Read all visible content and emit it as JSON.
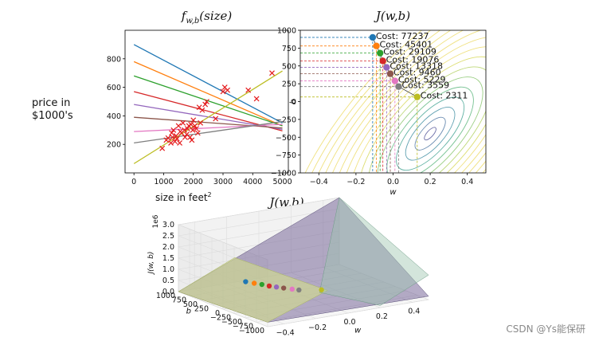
{
  "colors": {
    "c0": "#1f77b4",
    "c1": "#ff7f0e",
    "c2": "#2ca02c",
    "c3": "#d62728",
    "c4": "#9467bd",
    "c5": "#8c564b",
    "c6": "#e377c2",
    "c7": "#7f7f7f",
    "c8": "#bcbd22"
  },
  "labels": {
    "price_line1": "price in",
    "price_line2": "$1000's",
    "size_label": "size in feet",
    "size_sup": "2",
    "watermark": "CSDN @Ys能保研"
  },
  "chart_data": [
    {
      "type": "scatter",
      "id": "fit",
      "title": "f_{w,b}(size)",
      "xlabel": "size in feet²",
      "ylabel": "price in $1000's",
      "xlim": [
        -300,
        5200
      ],
      "ylim": [
        0,
        1000
      ],
      "xticks": [
        0,
        1000,
        2000,
        3000,
        4000,
        5000
      ],
      "yticks": [
        200,
        400,
        600,
        800
      ],
      "points": [
        [
          952,
          172
        ],
        [
          1090,
          230
        ],
        [
          1150,
          245
        ],
        [
          1244,
          210
        ],
        [
          1270,
          280
        ],
        [
          1300,
          250
        ],
        [
          1330,
          300
        ],
        [
          1380,
          220
        ],
        [
          1420,
          260
        ],
        [
          1450,
          240
        ],
        [
          1500,
          330
        ],
        [
          1540,
          210
        ],
        [
          1560,
          290
        ],
        [
          1600,
          280
        ],
        [
          1650,
          350
        ],
        [
          1700,
          300
        ],
        [
          1720,
          250
        ],
        [
          1780,
          270
        ],
        [
          1800,
          310
        ],
        [
          1850,
          330
        ],
        [
          1890,
          250
        ],
        [
          1920,
          340
        ],
        [
          1950,
          230
        ],
        [
          1980,
          300
        ],
        [
          2000,
          370
        ],
        [
          2050,
          330
        ],
        [
          2100,
          310
        ],
        [
          2150,
          280
        ],
        [
          2200,
          460
        ],
        [
          2240,
          350
        ],
        [
          2300,
          440
        ],
        [
          2400,
          480
        ],
        [
          2450,
          500
        ],
        [
          3000,
          570
        ],
        [
          3060,
          600
        ],
        [
          3150,
          580
        ],
        [
          3850,
          580
        ],
        [
          4130,
          520
        ],
        [
          4650,
          700
        ],
        [
          2750,
          380
        ]
      ],
      "lines": [
        {
          "w": -0.11,
          "b": 900,
          "color": "c0"
        },
        {
          "w": -0.09,
          "b": 780,
          "color": "c1"
        },
        {
          "w": -0.07,
          "b": 680,
          "color": "c2"
        },
        {
          "w": -0.055,
          "b": 570,
          "color": "c3"
        },
        {
          "w": -0.035,
          "b": 480,
          "color": "c4"
        },
        {
          "w": -0.015,
          "b": 390,
          "color": "c5"
        },
        {
          "w": 0.01,
          "b": 290,
          "color": "c6"
        },
        {
          "w": 0.03,
          "b": 210,
          "color": "c7"
        },
        {
          "w": 0.13,
          "b": 65,
          "color": "c8"
        }
      ]
    },
    {
      "type": "contour",
      "id": "contour",
      "title": "J(w,b)",
      "xlabel": "w",
      "ylabel": "b",
      "xlim": [
        -0.5,
        0.5
      ],
      "ylim": [
        -1000,
        1000
      ],
      "xticks": [
        -0.4,
        -0.2,
        0.0,
        0.2,
        0.4
      ],
      "yticks": [
        -1000,
        -750,
        -500,
        -250,
        0,
        250,
        500,
        750,
        1000
      ],
      "min_point": [
        0.2,
        -450
      ],
      "path": [
        {
          "w": -0.11,
          "b": 900,
          "cost": 77237,
          "color": "c0"
        },
        {
          "w": -0.09,
          "b": 780,
          "cost": 45401,
          "color": "c1"
        },
        {
          "w": -0.07,
          "b": 680,
          "cost": 29109,
          "color": "c2"
        },
        {
          "w": -0.055,
          "b": 570,
          "cost": 19076,
          "color": "c3"
        },
        {
          "w": -0.035,
          "b": 480,
          "cost": 13318,
          "color": "c4"
        },
        {
          "w": -0.015,
          "b": 390,
          "cost": 9460,
          "color": "c5"
        },
        {
          "w": 0.01,
          "b": 290,
          "cost": 5229,
          "color": "c6"
        },
        {
          "w": 0.03,
          "b": 210,
          "cost": 3559,
          "color": "c7"
        },
        {
          "w": 0.13,
          "b": 65,
          "cost": 2311,
          "color": "c8"
        }
      ],
      "cost_prefix": "Cost: "
    },
    {
      "type": "surface3d",
      "id": "surface",
      "title": "J(w,b)",
      "xlabel": "w",
      "ylabel": "b",
      "zlabel": "J(w, b)",
      "zscale": "1e6",
      "xlim": [
        -0.5,
        0.5
      ],
      "ylim": [
        -1000,
        1000
      ],
      "zlim": [
        0,
        3
      ],
      "xticks": [
        -0.4,
        -0.2,
        0.0,
        0.2,
        0.4
      ],
      "xtick_labels": [
        "−0.4",
        "−0.2",
        "0.0",
        "0.2",
        "0.4"
      ],
      "yticks": [
        1000,
        750,
        500,
        250,
        0,
        -250,
        -500,
        -750,
        -1000
      ],
      "ytick_labels": [
        "1000",
        "750",
        "500",
        "250",
        "0",
        "−250",
        "−500",
        "−750",
        "−1000"
      ],
      "zticks": [
        0,
        0.5,
        1,
        1.5,
        2,
        2.5,
        3
      ],
      "ztick_labels": [
        "0.0",
        "0.5",
        "1.0",
        "1.5",
        "2.0",
        "2.5",
        "3.0"
      ]
    }
  ]
}
